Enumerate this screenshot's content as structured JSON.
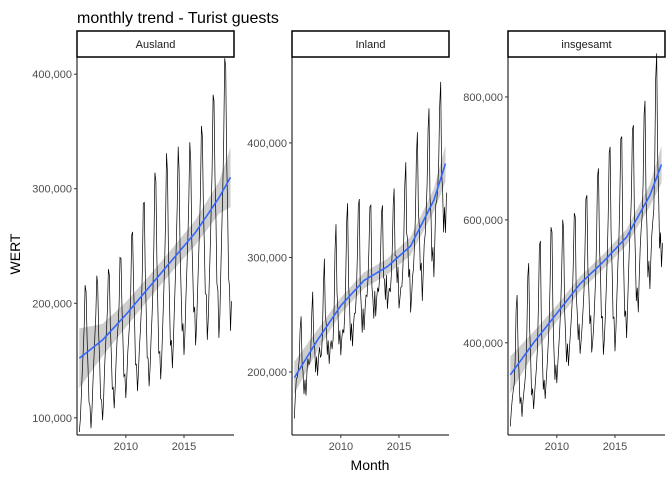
{
  "chart_data": {
    "type": "line",
    "title": "monthly trend - Turist guests",
    "xlabel": "Month",
    "ylabel": "WERT",
    "x_ticks": [
      2010,
      2015
    ],
    "x_range": [
      2005.8,
      2019.3
    ],
    "colors": {
      "line": "#000000",
      "trend": "#3366ff",
      "band": "#bdbdbd"
    },
    "panels": [
      {
        "name": "Ausland",
        "ylim": [
          85000,
          415000
        ],
        "y_ticks": [
          100000,
          200000,
          300000,
          400000
        ],
        "y_tick_labels": [
          "100,000",
          "200,000",
          "300,000",
          "400,000"
        ],
        "monthly_pattern": [
          0.6,
          0.68,
          0.8,
          0.9,
          1.0,
          1.13,
          1.36,
          1.32,
          1.05,
          0.9,
          0.72,
          0.72
        ],
        "trend": {
          "x": [
            2006.0,
            2008.0,
            2010.0,
            2012.0,
            2014.0,
            2016.0,
            2018.0,
            2019.0
          ],
          "y": [
            152000,
            168000,
            190000,
            214000,
            238000,
            262000,
            292000,
            310000
          ]
        },
        "band_halfwidth": [
          26000,
          14000,
          11000,
          10000,
          10000,
          11000,
          14000,
          26000
        ]
      },
      {
        "name": "Inland",
        "ylim": [
          145000,
          475000
        ],
        "y_ticks": [
          200000,
          300000,
          400000
        ],
        "y_tick_labels": [
          "200,000",
          "300,000",
          "400,000"
        ],
        "monthly_pattern": [
          0.84,
          0.9,
          0.94,
          0.93,
          0.97,
          1.05,
          1.2,
          1.25,
          1.02,
          0.98,
          0.88,
          0.93
        ],
        "trend": {
          "x": [
            2006.0,
            2008.0,
            2010.0,
            2012.0,
            2014.0,
            2016.0,
            2018.0,
            2019.0
          ],
          "y": [
            195000,
            228000,
            258000,
            280000,
            292000,
            310000,
            350000,
            382000
          ]
        },
        "band_halfwidth": [
          14000,
          9000,
          7000,
          7000,
          7000,
          8000,
          10000,
          16000
        ]
      },
      {
        "name": "insgesamt",
        "ylim": [
          250000,
          865000
        ],
        "y_ticks": [
          400000,
          600000,
          800000
        ],
        "y_tick_labels": [
          "400,000",
          "600,000",
          "800,000"
        ],
        "monthly_pattern": [
          0.74,
          0.8,
          0.86,
          0.92,
          0.98,
          1.1,
          1.29,
          1.3,
          1.03,
          0.93,
          0.8,
          0.83
        ],
        "trend": {
          "x": [
            2006.0,
            2008.0,
            2010.0,
            2012.0,
            2014.0,
            2016.0,
            2018.0,
            2019.0
          ],
          "y": [
            348000,
            400000,
            448000,
            496000,
            532000,
            572000,
            640000,
            690000
          ]
        },
        "band_halfwidth": [
          30000,
          18000,
          13000,
          12000,
          12000,
          13000,
          18000,
          30000
        ]
      }
    ]
  }
}
